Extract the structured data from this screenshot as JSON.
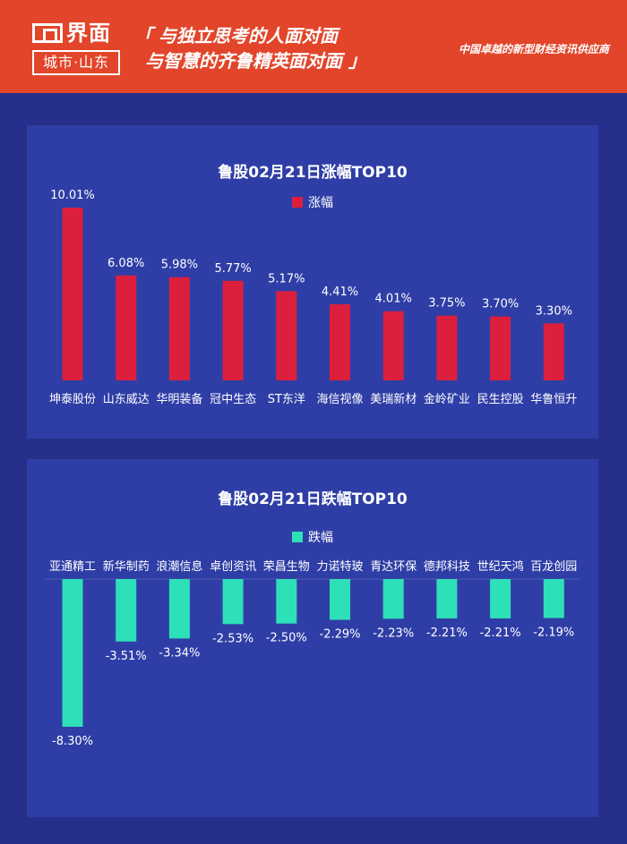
{
  "header": {
    "logo_word": "界面",
    "logo_sub": "城市·山东",
    "slogan_line1": "「 与独立思考的人面对面",
    "slogan_line2": "与智慧的齐鲁精英面对面 」",
    "tagline": "中国卓越的新型财经资讯供应商"
  },
  "colors": {
    "background": "#26308a",
    "panel": "#2f3ea6",
    "header": "#e2452a",
    "gain_bar": "#dc1f3c",
    "loss_bar": "#2ee0b8"
  },
  "chart_data": [
    {
      "type": "bar",
      "title": "鲁股02月21日涨幅TOP10",
      "legend": "涨幅",
      "categories": [
        "坤泰股份",
        "山东威达",
        "华明装备",
        "冠中生态",
        "ST东洋",
        "海信视像",
        "美瑞新材",
        "金岭矿业",
        "民生控股",
        "华鲁恒升"
      ],
      "values": [
        10.01,
        6.08,
        5.98,
        5.77,
        5.17,
        4.41,
        4.01,
        3.75,
        3.7,
        3.3
      ],
      "value_labels": [
        "10.01%",
        "6.08%",
        "5.98%",
        "5.77%",
        "5.17%",
        "4.41%",
        "4.01%",
        "3.75%",
        "3.70%",
        "3.30%"
      ],
      "ylim": [
        0,
        10.01
      ]
    },
    {
      "type": "bar",
      "title": "鲁股02月21日跌幅TOP10",
      "legend": "跌幅",
      "categories": [
        "亚通精工",
        "新华制药",
        "浪潮信息",
        "卓创资讯",
        "荣昌生物",
        "力诺特玻",
        "青达环保",
        "德邦科技",
        "世纪天鸿",
        "百龙创园"
      ],
      "values": [
        -8.3,
        -3.51,
        -3.34,
        -2.53,
        -2.5,
        -2.29,
        -2.23,
        -2.21,
        -2.21,
        -2.19
      ],
      "value_labels": [
        "-8.30%",
        "-3.51%",
        "-3.34%",
        "-2.53%",
        "-2.50%",
        "-2.29%",
        "-2.23%",
        "-2.21%",
        "-2.21%",
        "-2.19%"
      ],
      "ylim": [
        -8.3,
        0
      ]
    }
  ]
}
